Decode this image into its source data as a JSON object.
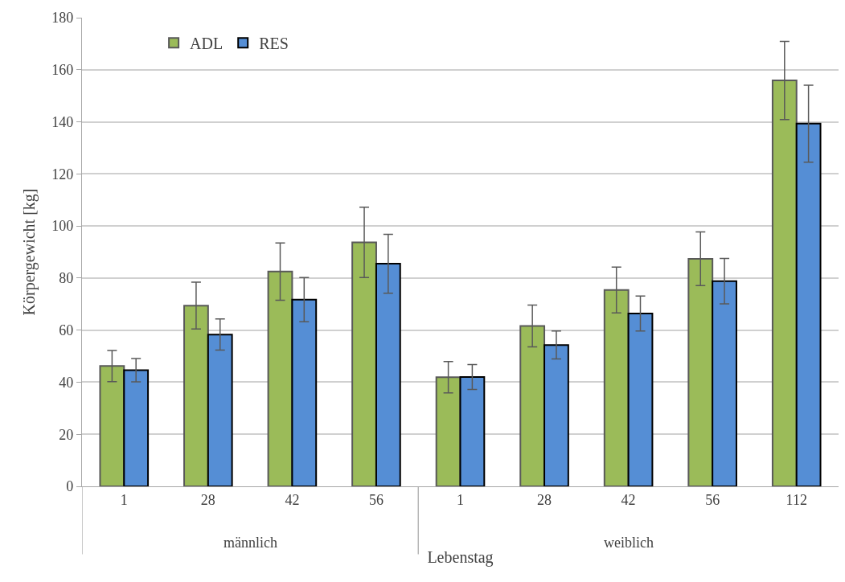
{
  "chart_data": {
    "type": "bar",
    "xlabel": "Lebenstag",
    "ylabel": "Körpergewicht [kg]",
    "categories": [
      "1",
      "28",
      "42",
      "56",
      "1",
      "28",
      "42",
      "56",
      "112"
    ],
    "series": [
      {
        "name": "ADL",
        "color": "#9bbb59",
        "values": [
          46.2,
          69.4,
          82.5,
          93.7,
          41.9,
          61.6,
          75.4,
          87.4,
          155.9
        ],
        "errors": [
          6,
          9,
          11,
          13.5,
          6,
          8,
          8.8,
          10.3,
          15
        ]
      },
      {
        "name": "RES",
        "color": "#558ed5",
        "values": [
          44.6,
          58.3,
          71.7,
          85.5,
          42.0,
          54.3,
          66.4,
          78.8,
          139.3
        ],
        "errors": [
          4.5,
          6,
          8.5,
          11.3,
          4.8,
          5.4,
          6.7,
          8.7,
          14.8
        ]
      }
    ],
    "annotations": [
      "männlich",
      "weiblich"
    ],
    "ylim": [
      0,
      180
    ],
    "yticks": [
      0,
      20,
      40,
      60,
      80,
      100,
      120,
      140,
      160,
      180
    ],
    "grid": "y",
    "legend": "top left"
  }
}
